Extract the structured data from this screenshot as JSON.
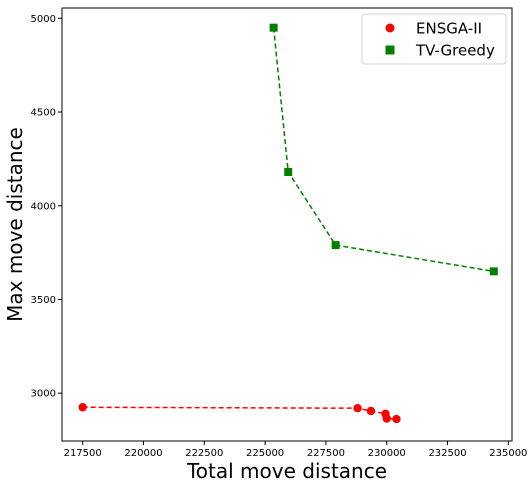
{
  "chart_data": {
    "type": "scatter",
    "xlabel": "Total move distance",
    "ylabel": "Max move distance",
    "xlim": [
      216650,
      235150
    ],
    "ylim": [
      2745,
      5055
    ],
    "x_ticks": [
      217500,
      220000,
      222500,
      225000,
      227500,
      230000,
      232500,
      235000
    ],
    "y_ticks": [
      3000,
      3500,
      4000,
      4500,
      5000
    ],
    "grid": false,
    "legend_position": "top-right",
    "series": [
      {
        "name": "ENSGA-II",
        "marker": "circle",
        "line_style": "dashed",
        "color": "#ff0000",
        "points": [
          {
            "x": 217500,
            "y": 2925
          },
          {
            "x": 228800,
            "y": 2920
          },
          {
            "x": 229350,
            "y": 2905
          },
          {
            "x": 229950,
            "y": 2890
          },
          {
            "x": 230000,
            "y": 2865
          },
          {
            "x": 230400,
            "y": 2862
          }
        ]
      },
      {
        "name": "TV-Greedy",
        "marker": "square",
        "line_style": "dashed",
        "color": "#008000",
        "points": [
          {
            "x": 225350,
            "y": 4950
          },
          {
            "x": 225950,
            "y": 4180
          },
          {
            "x": 227900,
            "y": 3790
          },
          {
            "x": 234400,
            "y": 3650
          }
        ]
      }
    ]
  }
}
